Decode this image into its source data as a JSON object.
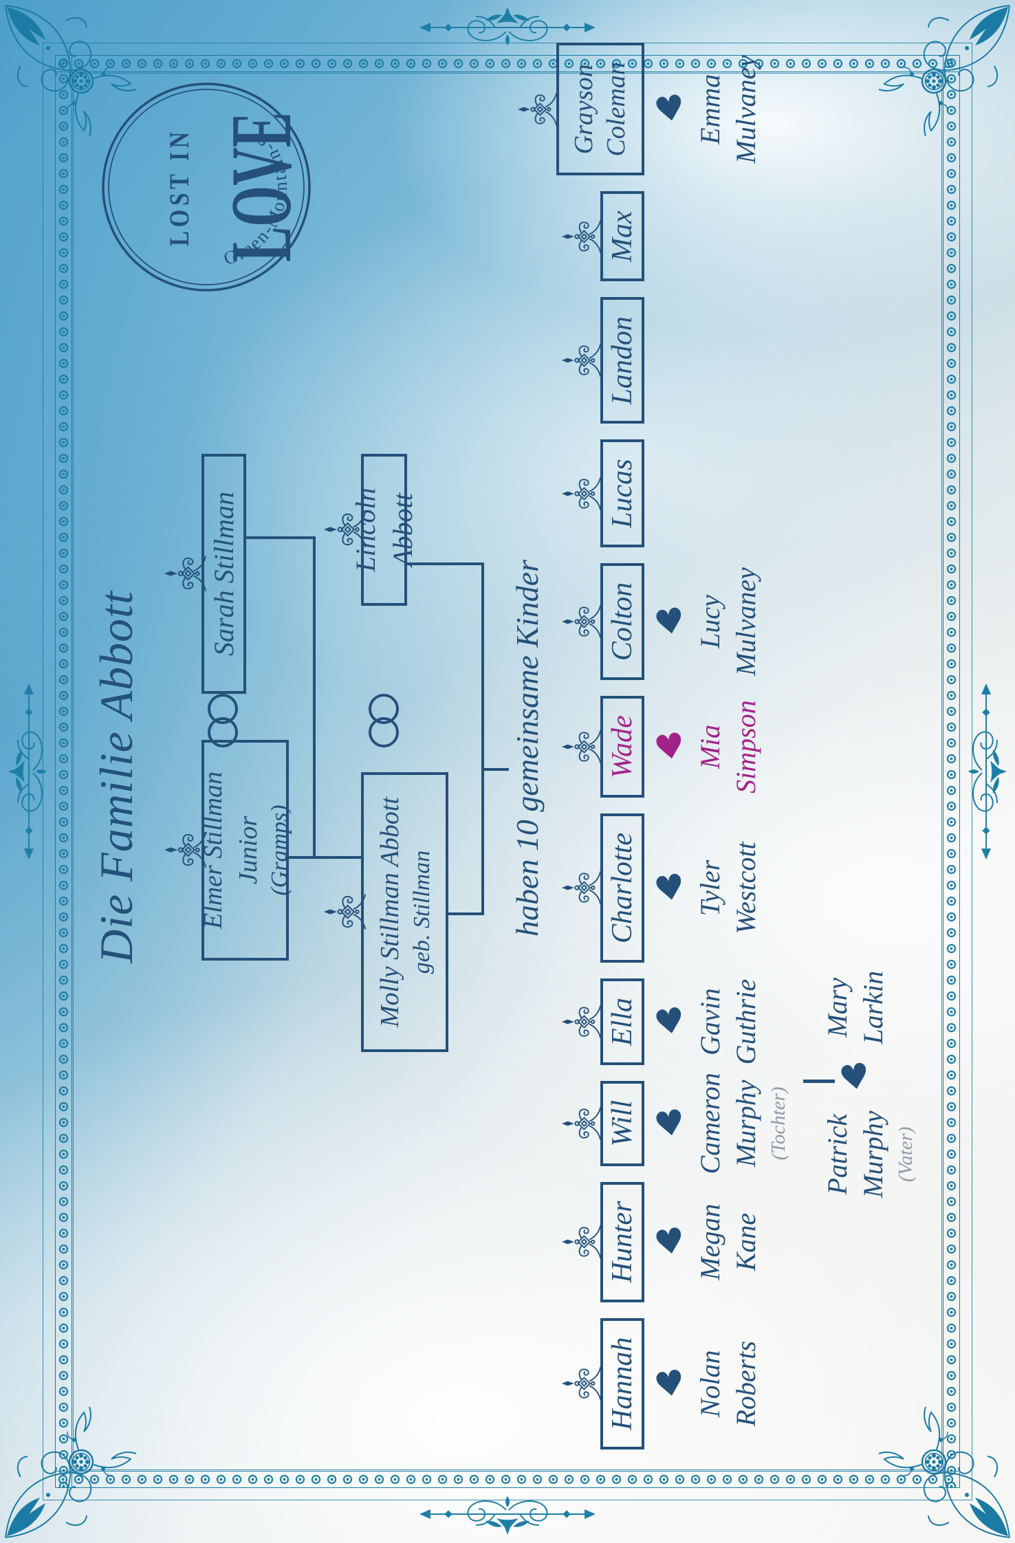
{
  "badge": {
    "top": "LOST IN",
    "main": "LOVE",
    "arc": "Die Green-Mountain-Serie"
  },
  "title": "Die Familie Abbott",
  "generation1": {
    "husband": {
      "line1": "Elmer Stillman Junior",
      "line2": "(Gramps)"
    },
    "wife": {
      "line1": "Sarah Stillman"
    }
  },
  "generation2": {
    "mother": {
      "line1": "Molly Stillman Abbott",
      "line2": "geb. Stillman"
    },
    "father": {
      "line1": "Lincoln Abbott"
    }
  },
  "caption": "haben 10 gemeinsame Kinder",
  "children": [
    {
      "name": "Hannah",
      "partner": [
        "Nolan",
        "Roberts"
      ]
    },
    {
      "name": "Hunter",
      "partner": [
        "Megan",
        "Kane"
      ]
    },
    {
      "name": "Will",
      "partner": [
        "Cameron",
        "Murphy"
      ],
      "partner_note": "(Tochter)"
    },
    {
      "name": "Ella",
      "partner": [
        "Gavin",
        "Guthrie"
      ]
    },
    {
      "name": "Charlotte",
      "partner": [
        "Tyler",
        "Westcott"
      ]
    },
    {
      "name": "Wade",
      "partner": [
        "Mia",
        "Simpson"
      ],
      "highlight": true
    },
    {
      "name": "Colton",
      "partner": [
        "Lucy",
        "Mulvaney"
      ]
    },
    {
      "name": "Lucas"
    },
    {
      "name": "Landon"
    },
    {
      "name": "Max"
    },
    {
      "name": "Grayson Coleman",
      "name_lines": [
        "Grayson",
        "Coleman"
      ],
      "partner": [
        "Emma",
        "Mulvaney"
      ]
    }
  ],
  "extra_family": {
    "person": [
      "Patrick",
      "Murphy"
    ],
    "person_note": "(Vater)",
    "partner": [
      "Mary",
      "Larkin"
    ]
  },
  "colors": {
    "ink": "#24507a",
    "highlight": "#a32289",
    "note_gray": "#9099a8",
    "frame_teal": "#1b7ba4"
  }
}
